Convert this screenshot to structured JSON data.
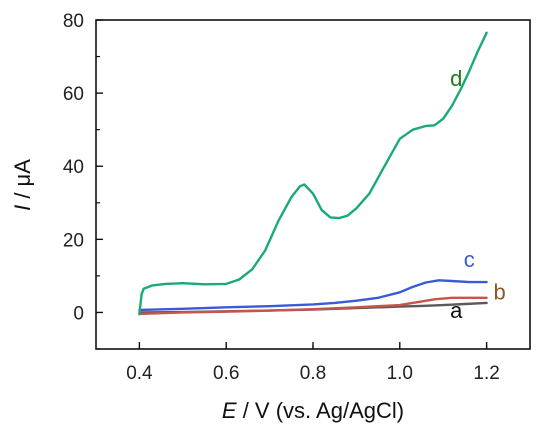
{
  "chart_data": {
    "type": "line",
    "xlabel_italic": "E",
    "xlabel_rest": " / V (vs. Ag/AgCl)",
    "ylabel_italic": "I",
    "ylabel_rest": " / μA",
    "xlim": [
      0.3,
      1.3
    ],
    "ylim": [
      -10,
      80
    ],
    "xticks": [
      0.4,
      0.6,
      0.8,
      1.0,
      1.2
    ],
    "xtick_labels": [
      "0.4",
      "0.6",
      "0.8",
      "1.0",
      "1.2"
    ],
    "yticks": [
      0,
      20,
      40,
      60,
      80
    ],
    "ytick_labels": [
      "0",
      "20",
      "40",
      "60",
      "80"
    ],
    "grid": false,
    "series": [
      {
        "name": "a",
        "color": "#5a5a5a",
        "label_pos": [
          1.13,
          -1.5
        ],
        "x": [
          0.4,
          0.5,
          0.6,
          0.7,
          0.8,
          0.9,
          1.0,
          1.05,
          1.1,
          1.15,
          1.2
        ],
        "y": [
          0.0,
          0.1,
          0.3,
          0.5,
          0.8,
          1.2,
          1.6,
          1.8,
          2.0,
          2.3,
          2.6
        ]
      },
      {
        "name": "b",
        "color": "#c8554a",
        "label_color": "#8b5a2b",
        "label_pos": [
          1.23,
          3.5
        ],
        "x": [
          0.4,
          0.5,
          0.6,
          0.7,
          0.8,
          0.9,
          1.0,
          1.04,
          1.08,
          1.12,
          1.16,
          1.2
        ],
        "y": [
          -0.4,
          0.0,
          0.2,
          0.5,
          0.9,
          1.4,
          2.0,
          2.8,
          3.6,
          4.0,
          4.0,
          4.0
        ]
      },
      {
        "name": "c",
        "color": "#3a5ad8",
        "label_color": "#3a5ad8",
        "label_pos": [
          1.16,
          12.5
        ],
        "x": [
          0.4,
          0.5,
          0.6,
          0.7,
          0.8,
          0.85,
          0.9,
          0.95,
          1.0,
          1.03,
          1.06,
          1.09,
          1.12,
          1.16,
          1.2
        ],
        "y": [
          0.7,
          1.0,
          1.4,
          1.7,
          2.2,
          2.6,
          3.2,
          4.0,
          5.5,
          7.0,
          8.2,
          8.8,
          8.6,
          8.3,
          8.3
        ]
      },
      {
        "name": "d",
        "color": "#1aaa78",
        "label_color": "#1d7a1d",
        "label_pos": [
          1.13,
          62
        ],
        "x": [
          0.4,
          0.405,
          0.41,
          0.43,
          0.46,
          0.5,
          0.55,
          0.6,
          0.63,
          0.66,
          0.69,
          0.72,
          0.75,
          0.77,
          0.78,
          0.8,
          0.82,
          0.84,
          0.86,
          0.88,
          0.9,
          0.93,
          0.96,
          1.0,
          1.03,
          1.06,
          1.08,
          1.1,
          1.12,
          1.14,
          1.16,
          1.18,
          1.2
        ],
        "y": [
          -0.5,
          5.0,
          6.5,
          7.4,
          7.8,
          8.0,
          7.7,
          7.8,
          9.0,
          11.8,
          17.0,
          25.0,
          31.5,
          34.5,
          35.0,
          32.5,
          28.0,
          26.0,
          25.8,
          26.5,
          28.5,
          32.5,
          39.0,
          47.5,
          50.0,
          51.0,
          51.2,
          53.0,
          56.5,
          61.0,
          66.0,
          71.5,
          76.5
        ]
      }
    ]
  }
}
